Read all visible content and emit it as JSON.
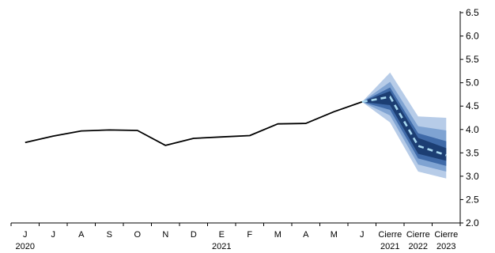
{
  "title_fragment": "",
  "colors": {
    "line": "#000000",
    "forecast_dashed": "#a7d8f0",
    "band_outer": "#b7cce8",
    "band_mid": "#7fa3d2",
    "band_inner": "#3f6aa8",
    "band_core": "#1c3e73",
    "axis": "#000000",
    "title": "#1f3b73"
  },
  "chart_data": {
    "type": "line",
    "categories": [
      "J",
      "J",
      "A",
      "S",
      "O",
      "N",
      "D",
      "E",
      "F",
      "M",
      "A",
      "M",
      "J",
      "Cierre",
      "Cierre",
      "Cierre"
    ],
    "category_sublabels": [
      "2020",
      "",
      "",
      "",
      "",
      "",
      "",
      "2021",
      "",
      "",
      "",
      "",
      "",
      "2021",
      "2022",
      "2023"
    ],
    "series": [
      {
        "values": [
          3.72,
          3.86,
          3.97,
          3.99,
          3.98,
          3.66,
          3.81,
          3.84,
          3.87,
          4.12,
          4.13,
          4.38,
          4.59,
          null,
          null,
          null
        ]
      },
      {
        "style": "dashed",
        "values": [
          null,
          null,
          null,
          null,
          null,
          null,
          null,
          null,
          null,
          null,
          null,
          null,
          4.59,
          4.7,
          3.65,
          3.45
        ]
      }
    ],
    "fan_bands": [
      {
        "level": "outer",
        "lower": [
          4.59,
          4.15,
          3.1,
          2.95
        ],
        "upper": [
          4.59,
          5.22,
          4.28,
          4.25
        ]
      },
      {
        "level": "mid",
        "lower": [
          4.59,
          4.3,
          3.25,
          3.1
        ],
        "upper": [
          4.59,
          5.02,
          4.07,
          3.98
        ]
      },
      {
        "level": "inner",
        "lower": [
          4.59,
          4.42,
          3.38,
          3.22
        ],
        "upper": [
          4.59,
          4.9,
          3.92,
          3.75
        ]
      },
      {
        "level": "core",
        "lower": [
          4.59,
          4.52,
          3.48,
          3.33
        ],
        "upper": [
          4.59,
          4.82,
          3.82,
          3.6
        ]
      }
    ],
    "band_start_index": 12,
    "yticks": [
      "2.0",
      "2.5",
      "3.0",
      "3.5",
      "4.0",
      "4.5",
      "5.0",
      "5.5",
      "6.0",
      "6.5"
    ],
    "ylim": [
      2.0,
      6.5
    ],
    "y_axis_side": "right",
    "grid": false,
    "legend": "none",
    "title": "",
    "xlabel": "",
    "ylabel": ""
  }
}
